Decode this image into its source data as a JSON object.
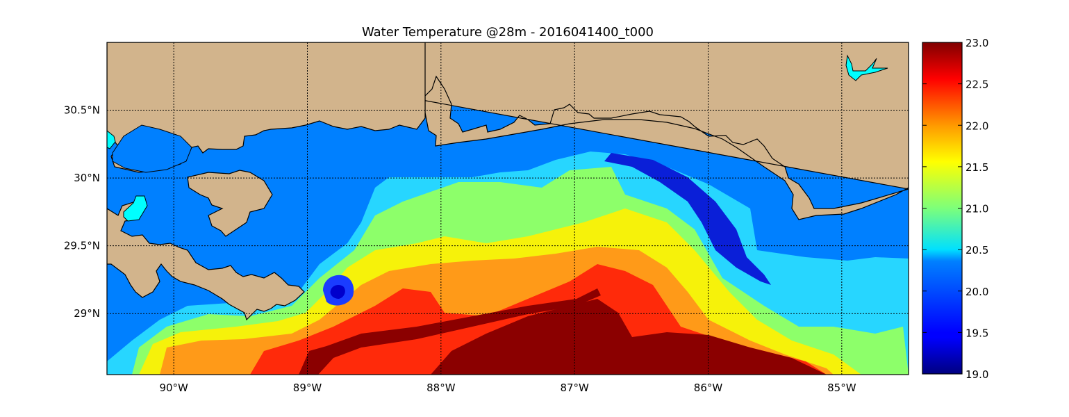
{
  "title": "Water Temperature @28m - 2016041400_t000",
  "map": {
    "lon_range": [
      -90.5,
      -84.5
    ],
    "lat_range": [
      28.55,
      31.0
    ],
    "x_ticks": [
      {
        "lon": -90,
        "label": "90°W"
      },
      {
        "lon": -89,
        "label": "89°W"
      },
      {
        "lon": -88,
        "label": "88°W"
      },
      {
        "lon": -87,
        "label": "87°W"
      },
      {
        "lon": -86,
        "label": "86°W"
      },
      {
        "lon": -85,
        "label": "85°W"
      }
    ],
    "y_ticks": [
      {
        "lat": 30.5,
        "label": "30.5°N"
      },
      {
        "lat": 30.0,
        "label": "30°N"
      },
      {
        "lat": 29.5,
        "label": "29.5°N"
      },
      {
        "lat": 29.0,
        "label": "29°N"
      }
    ],
    "grid": true,
    "land_color": "#d2b48c",
    "masked_water_color": "#0080ff",
    "lake_color": "#00ffff"
  },
  "colorbar": {
    "min": 19.0,
    "max": 23.0,
    "colormap": "jet",
    "ticks": [
      "19.0",
      "19.5",
      "20.0",
      "20.5",
      "21.0",
      "21.5",
      "22.0",
      "22.5",
      "23.0"
    ]
  }
}
